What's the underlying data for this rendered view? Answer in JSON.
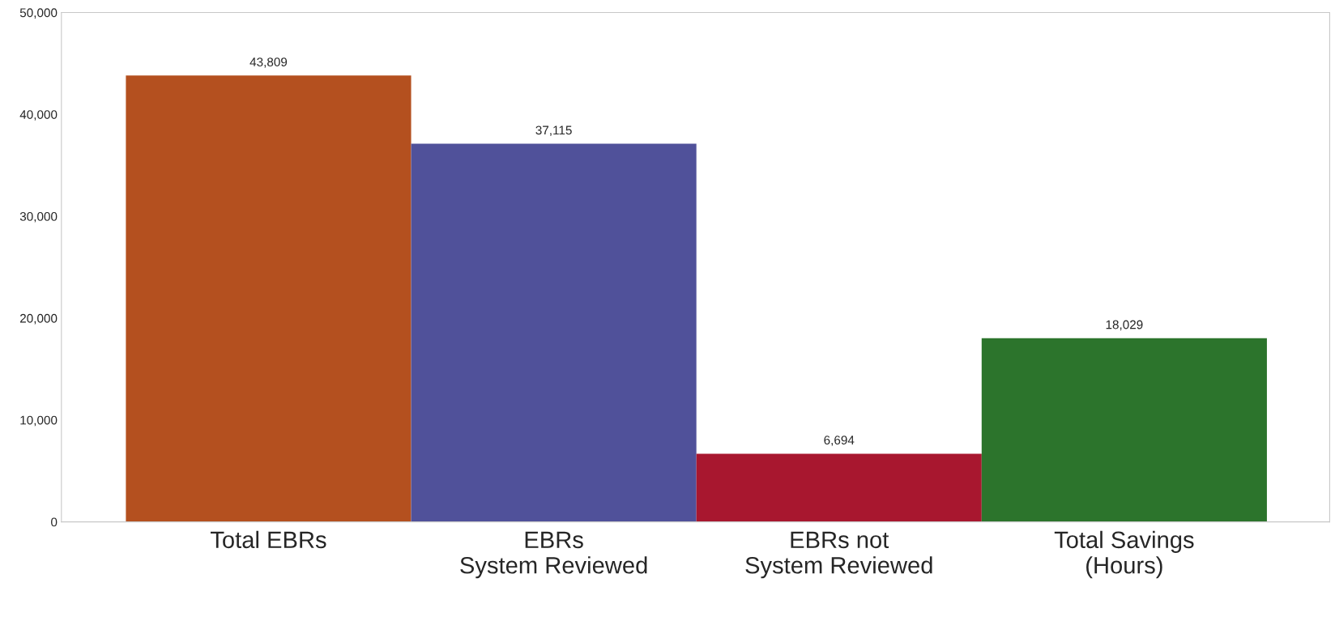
{
  "chart_data": {
    "type": "bar",
    "categories": [
      "Total EBRs",
      "EBRs\nSystem Reviewed",
      "EBRs not\nSystem Reviewed",
      "Total Savings\n(Hours)"
    ],
    "values": [
      43809,
      37115,
      6694,
      18029
    ],
    "colors": [
      "#b4501f",
      "#50519a",
      "#a8172f",
      "#2c742c"
    ],
    "data_labels": true,
    "value_labels": [
      "43,809",
      "37,115",
      "6,694",
      "18,029"
    ],
    "ylim": [
      0,
      50000
    ],
    "yticks": [
      {
        "value": 0,
        "label": "0"
      },
      {
        "value": 10000,
        "label": "10,000"
      },
      {
        "value": 20000,
        "label": "20,000"
      },
      {
        "value": 30000,
        "label": "30,000"
      },
      {
        "value": 40000,
        "label": "40,000"
      },
      {
        "value": 50000,
        "label": "50,000"
      }
    ],
    "grid": false,
    "legend": false
  }
}
